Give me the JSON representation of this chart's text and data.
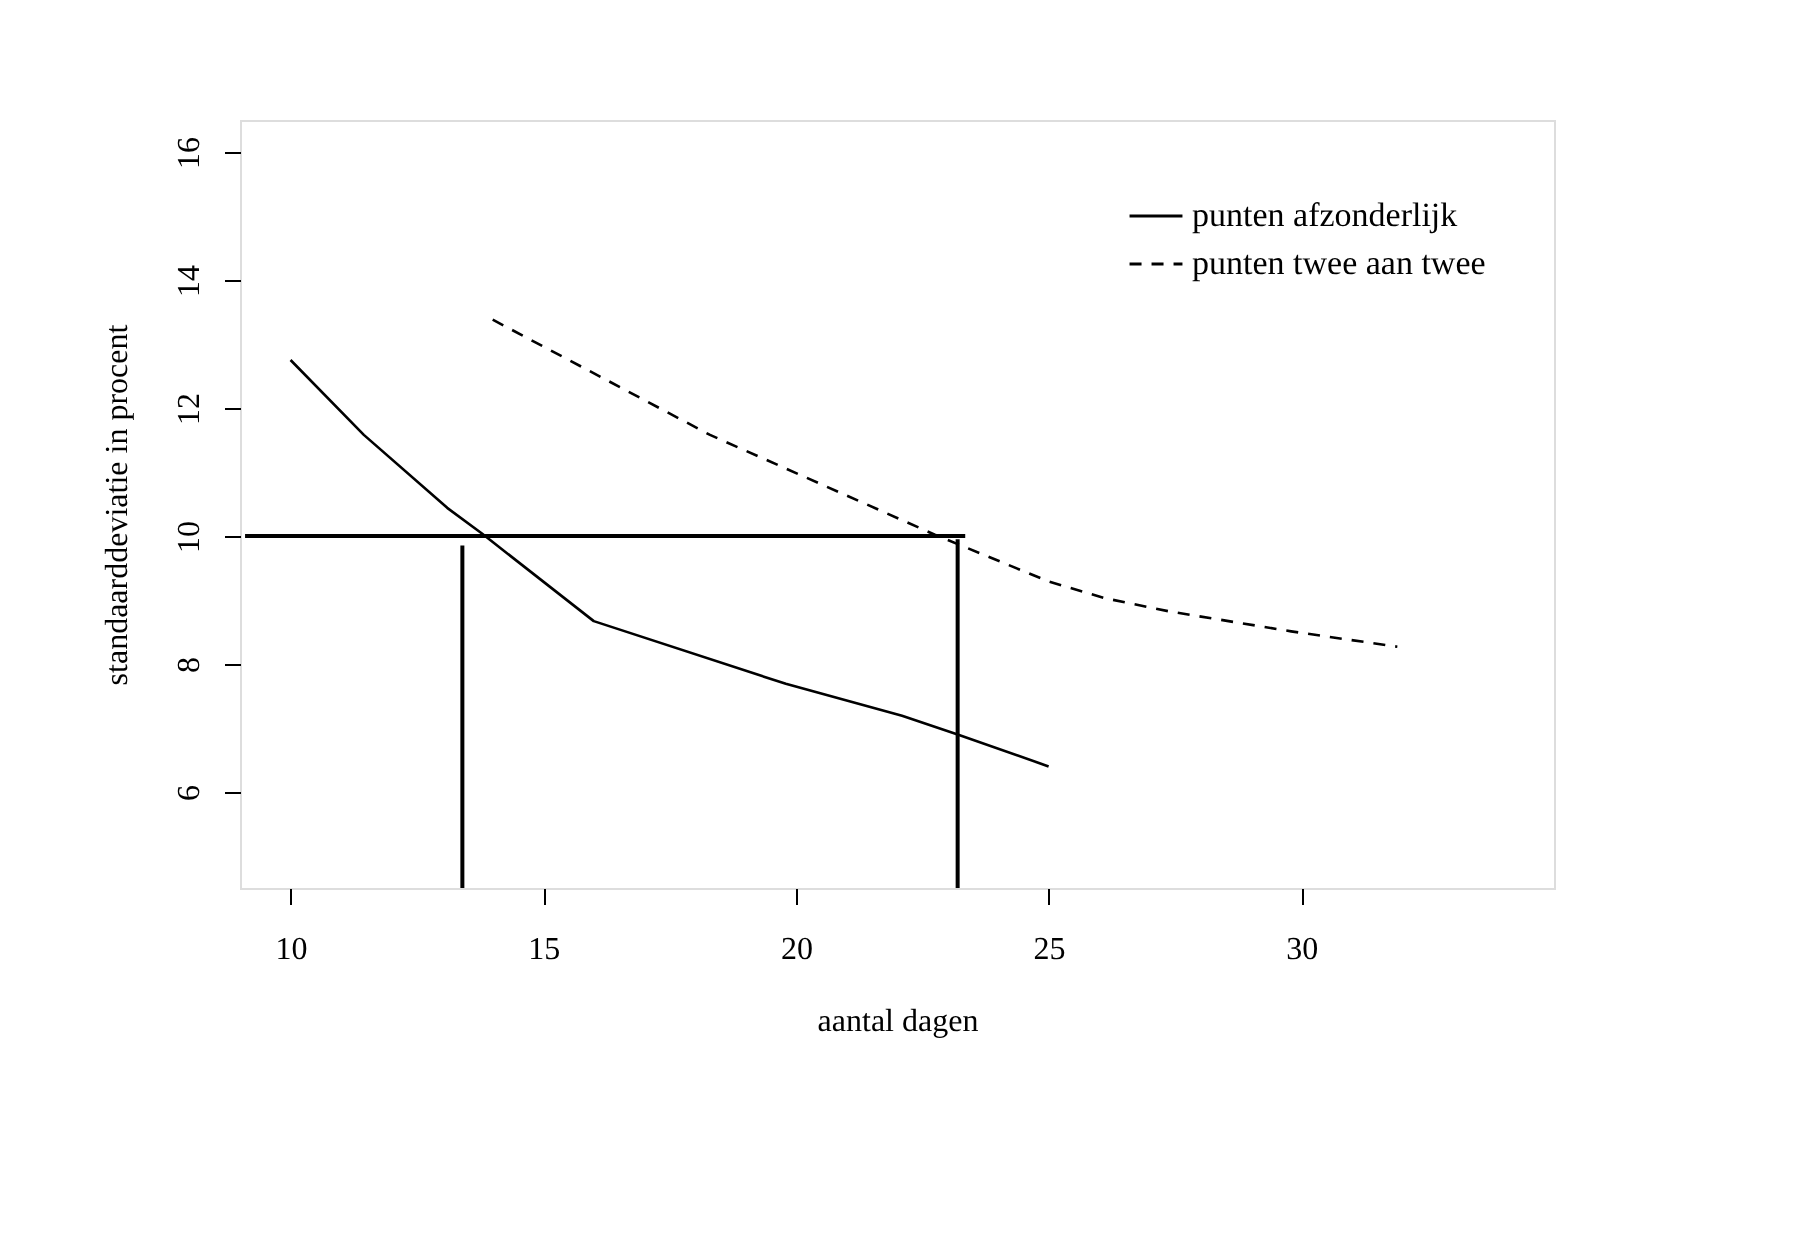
{
  "chart_data": {
    "type": "line",
    "xlabel": "aantal dagen",
    "ylabel": "standaarddeviatie in procent",
    "xlim": [
      9,
      35
    ],
    "xticks": [
      10,
      15,
      20,
      25,
      30
    ],
    "ylim": [
      4.5,
      16.5
    ],
    "yticks": [
      6,
      8,
      10,
      12,
      14,
      16
    ],
    "grid": false,
    "legend": "top right",
    "marker": "none",
    "series": [
      {
        "name": "punten afzonderlijk",
        "color": "#000000",
        "line_style": "solid",
        "x": [
          10,
          11.45,
          13.1,
          13.8,
          16.0,
          19.8,
          22.1,
          23.2,
          25.0
        ],
        "values": [
          12.75,
          11.58,
          10.44,
          10.03,
          8.67,
          7.69,
          7.19,
          6.9,
          6.4
        ]
      },
      {
        "name": "punten twee aan twee",
        "color": "#000000",
        "line_style": "dashed",
        "x": [
          14.0,
          18.3,
          22.75,
          25.0,
          26.1,
          27.4,
          29.8,
          31.9
        ],
        "values": [
          13.38,
          11.58,
          10.02,
          9.29,
          9.03,
          8.82,
          8.51,
          8.27
        ]
      },
      {
        "color": "#000000",
        "line_style": "solid",
        "x": [
          9.1,
          23.35
        ],
        "values": [
          10.0,
          10.0
        ]
      },
      {
        "color": "#000000",
        "line_style": "solid",
        "x": [
          13.4,
          13.4
        ],
        "values": [
          4.5,
          9.85
        ]
      },
      {
        "color": "#000000",
        "line_style": "solid",
        "x": [
          23.2,
          23.2
        ],
        "values": [
          4.5,
          9.95
        ]
      }
    ]
  }
}
